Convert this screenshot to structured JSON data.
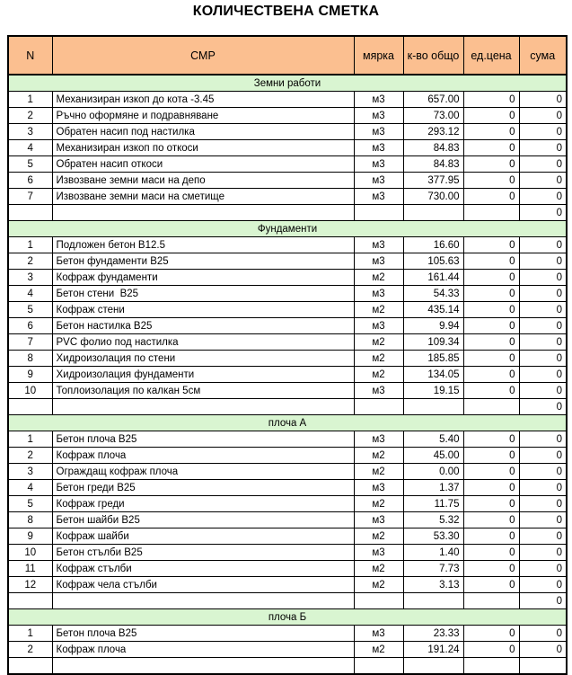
{
  "title": "КОЛИЧЕСТВЕНА СМЕТКА",
  "columns": [
    "N",
    "СМР",
    "мярка",
    "к-во общо",
    "ед.цена",
    "сума"
  ],
  "colors": {
    "header_bg": "#FBBF90",
    "section_bg": "#D9F5D1",
    "border": "#000000",
    "text": "#000000"
  },
  "sections": [
    {
      "name": "Земни работи",
      "rows": [
        {
          "n": "1",
          "smr": "Механизиран изкоп до кота -3.45",
          "unit": "м3",
          "qty": "657.00",
          "price": "0",
          "sum": "0"
        },
        {
          "n": "2",
          "smr": "Ръчно оформяне и подравняване",
          "unit": "м3",
          "qty": "73.00",
          "price": "0",
          "sum": "0"
        },
        {
          "n": "3",
          "smr": "Обратен насип под настилка",
          "unit": "м3",
          "qty": "293.12",
          "price": "0",
          "sum": "0"
        },
        {
          "n": "4",
          "smr": "Механизиран изкоп по откоси",
          "unit": "м3",
          "qty": "84.83",
          "price": "0",
          "sum": "0"
        },
        {
          "n": "5",
          "smr": "Обратен насип откоси",
          "unit": "м3",
          "qty": "84.83",
          "price": "0",
          "sum": "0"
        },
        {
          "n": "6",
          "smr": "Извозване земни маси на депо",
          "unit": "м3",
          "qty": "377.95",
          "price": "0",
          "sum": "0"
        },
        {
          "n": "7",
          "smr": "Извозване земни маси на сметище",
          "unit": "м3",
          "qty": "730.00",
          "price": "0",
          "sum": "0"
        }
      ],
      "total": "0"
    },
    {
      "name": "Фундаменти",
      "rows": [
        {
          "n": "1",
          "smr": "Подложен бетон В12.5",
          "unit": "м3",
          "qty": "16.60",
          "price": "0",
          "sum": "0"
        },
        {
          "n": "2",
          "smr": "Бетон фундаменти В25",
          "unit": "м3",
          "qty": "105.63",
          "price": "0",
          "sum": "0"
        },
        {
          "n": "3",
          "smr": "Кофраж фундаменти",
          "unit": "м2",
          "qty": "161.44",
          "price": "0",
          "sum": "0"
        },
        {
          "n": "4",
          "smr": "Бетон стени  В25",
          "unit": "м3",
          "qty": "54.33",
          "price": "0",
          "sum": "0"
        },
        {
          "n": "5",
          "smr": "Кофраж стени",
          "unit": "м2",
          "qty": "435.14",
          "price": "0",
          "sum": "0"
        },
        {
          "n": "6",
          "smr": "Бетон настилка В25",
          "unit": "м3",
          "qty": "9.94",
          "price": "0",
          "sum": "0"
        },
        {
          "n": "7",
          "smr": "PVC фолио под настилка",
          "unit": "м2",
          "qty": "109.34",
          "price": "0",
          "sum": "0"
        },
        {
          "n": "8",
          "smr": "Хидроизолация по стени",
          "unit": "м2",
          "qty": "185.85",
          "price": "0",
          "sum": "0"
        },
        {
          "n": "9",
          "smr": "Хидроизолация фундаменти",
          "unit": "м2",
          "qty": "134.05",
          "price": "0",
          "sum": "0"
        },
        {
          "n": "10",
          "smr": "Топлоизолация по калкан 5см",
          "unit": "м3",
          "qty": "19.15",
          "price": "0",
          "sum": "0"
        }
      ],
      "total": "0"
    },
    {
      "name": "плоча А",
      "rows": [
        {
          "n": "1",
          "smr": "Бетон плоча В25",
          "unit": "м3",
          "qty": "5.40",
          "price": "0",
          "sum": "0"
        },
        {
          "n": "2",
          "smr": "Кофраж плоча",
          "unit": "м2",
          "qty": "45.00",
          "price": "0",
          "sum": "0"
        },
        {
          "n": "3",
          "smr": "Ограждащ кофраж плоча",
          "unit": "м2",
          "qty": "0.00",
          "price": "0",
          "sum": "0"
        },
        {
          "n": "4",
          "smr": "Бетон греди В25",
          "unit": "м3",
          "qty": "1.37",
          "price": "0",
          "sum": "0"
        },
        {
          "n": "5",
          "smr": "Кофраж греди",
          "unit": "м2",
          "qty": "11.75",
          "price": "0",
          "sum": "0"
        },
        {
          "n": "8",
          "smr": "Бетон шайби В25",
          "unit": "м3",
          "qty": "5.32",
          "price": "0",
          "sum": "0"
        },
        {
          "n": "9",
          "smr": "Кофраж шайби",
          "unit": "м2",
          "qty": "53.30",
          "price": "0",
          "sum": "0"
        },
        {
          "n": "10",
          "smr": "Бетон стълби В25",
          "unit": "м3",
          "qty": "1.40",
          "price": "0",
          "sum": "0"
        },
        {
          "n": "11",
          "smr": "Кофраж стълби",
          "unit": "м2",
          "qty": "7.73",
          "price": "0",
          "sum": "0"
        },
        {
          "n": "12",
          "smr": "Кофраж чела стълби",
          "unit": "м2",
          "qty": "3.13",
          "price": "0",
          "sum": "0"
        }
      ],
      "total": "0"
    },
    {
      "name": "плоча Б",
      "rows": [
        {
          "n": "1",
          "smr": "Бетон плоча В25",
          "unit": "м3",
          "qty": "23.33",
          "price": "0",
          "sum": "0"
        },
        {
          "n": "2",
          "smr": "Кофраж плоча",
          "unit": "м2",
          "qty": "191.24",
          "price": "0",
          "sum": "0"
        }
      ]
    }
  ]
}
